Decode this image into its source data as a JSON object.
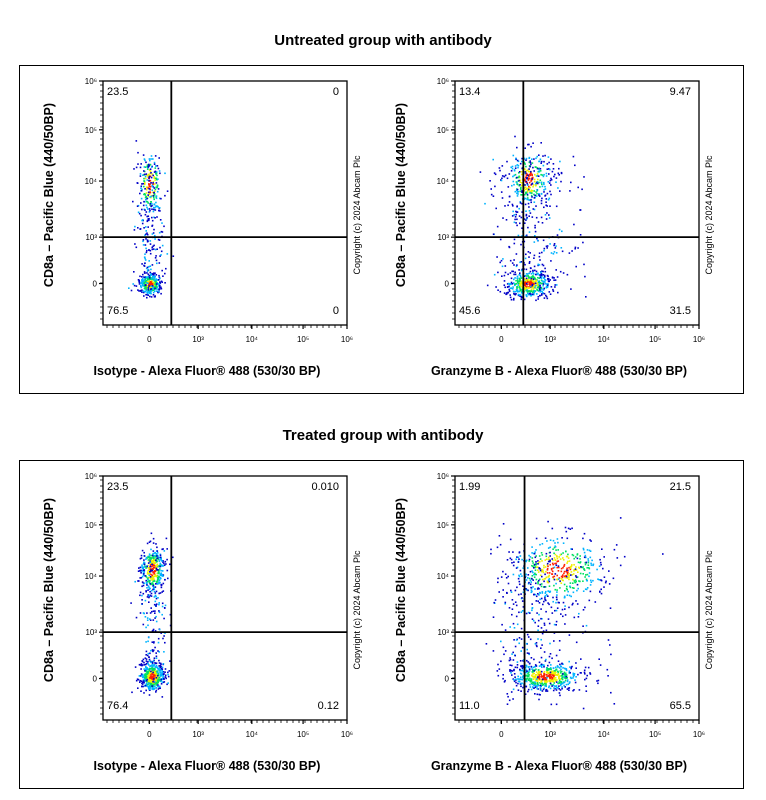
{
  "chart_data": [
    {
      "type": "scatter",
      "group_title": "Untreated group with antibody",
      "xlabel": "Isotype - Alexa Fluor® 488 (530/30 BP)",
      "ylabel": "CD8a – Pacific Blue (440/50BP)",
      "x_ticks": [
        "0",
        "10^3",
        "10^4",
        "10^5",
        "10^6"
      ],
      "y_ticks": [
        "0",
        "10^3",
        "10^4",
        "10^5",
        "10^6"
      ],
      "x_scale": "biexponential",
      "y_scale": "biexponential",
      "quadrants": {
        "upper_left": "23.5",
        "upper_right": "0",
        "lower_left": "76.5",
        "lower_right": "0"
      },
      "watermark": "Copyright (c) 2024 Abcam Plc"
    },
    {
      "type": "scatter",
      "group_title": "Untreated group with antibody",
      "xlabel": "Granzyme B - Alexa Fluor® 488 (530/30 BP)",
      "ylabel": "CD8a – Pacific Blue (440/50BP)",
      "x_ticks": [
        "0",
        "10^3",
        "10^4",
        "10^5",
        "10^6"
      ],
      "y_ticks": [
        "0",
        "10^3",
        "10^4",
        "10^5",
        "10^6"
      ],
      "x_scale": "biexponential",
      "y_scale": "biexponential",
      "quadrants": {
        "upper_left": "13.4",
        "upper_right": "9.47",
        "lower_left": "45.6",
        "lower_right": "31.5"
      },
      "watermark": "Copyright (c) 2024 Abcam Plc"
    },
    {
      "type": "scatter",
      "group_title": "Treated group with antibody",
      "xlabel": "Isotype - Alexa Fluor® 488 (530/30 BP)",
      "ylabel": "CD8a – Pacific Blue (440/50BP)",
      "x_ticks": [
        "0",
        "10^3",
        "10^4",
        "10^5",
        "10^6"
      ],
      "y_ticks": [
        "0",
        "10^3",
        "10^4",
        "10^5",
        "10^6"
      ],
      "x_scale": "biexponential",
      "y_scale": "biexponential",
      "quadrants": {
        "upper_left": "23.5",
        "upper_right": "0.010",
        "lower_left": "76.4",
        "lower_right": "0.12"
      },
      "watermark": "Copyright (c) 2024 Abcam Plc"
    },
    {
      "type": "scatter",
      "group_title": "Treated group with antibody",
      "xlabel": "Granzyme B - Alexa Fluor® 488 (530/30 BP)",
      "ylabel": "CD8a – Pacific Blue (440/50BP)",
      "x_ticks": [
        "0",
        "10^3",
        "10^4",
        "10^5",
        "10^6"
      ],
      "y_ticks": [
        "0",
        "10^3",
        "10^4",
        "10^5",
        "10^6"
      ],
      "x_scale": "biexponential",
      "y_scale": "biexponential",
      "quadrants": {
        "upper_left": "1.99",
        "upper_right": "21.5",
        "lower_left": "11.0",
        "lower_right": "65.5"
      },
      "watermark": "Copyright (c) 2024 Abcam Plc"
    }
  ],
  "titles": {
    "top": "Untreated group with antibody",
    "bottom": "Treated group with antibody"
  },
  "density_colors": [
    "#0000c8",
    "#00b4ff",
    "#00e060",
    "#f0f000",
    "#ff2000"
  ]
}
